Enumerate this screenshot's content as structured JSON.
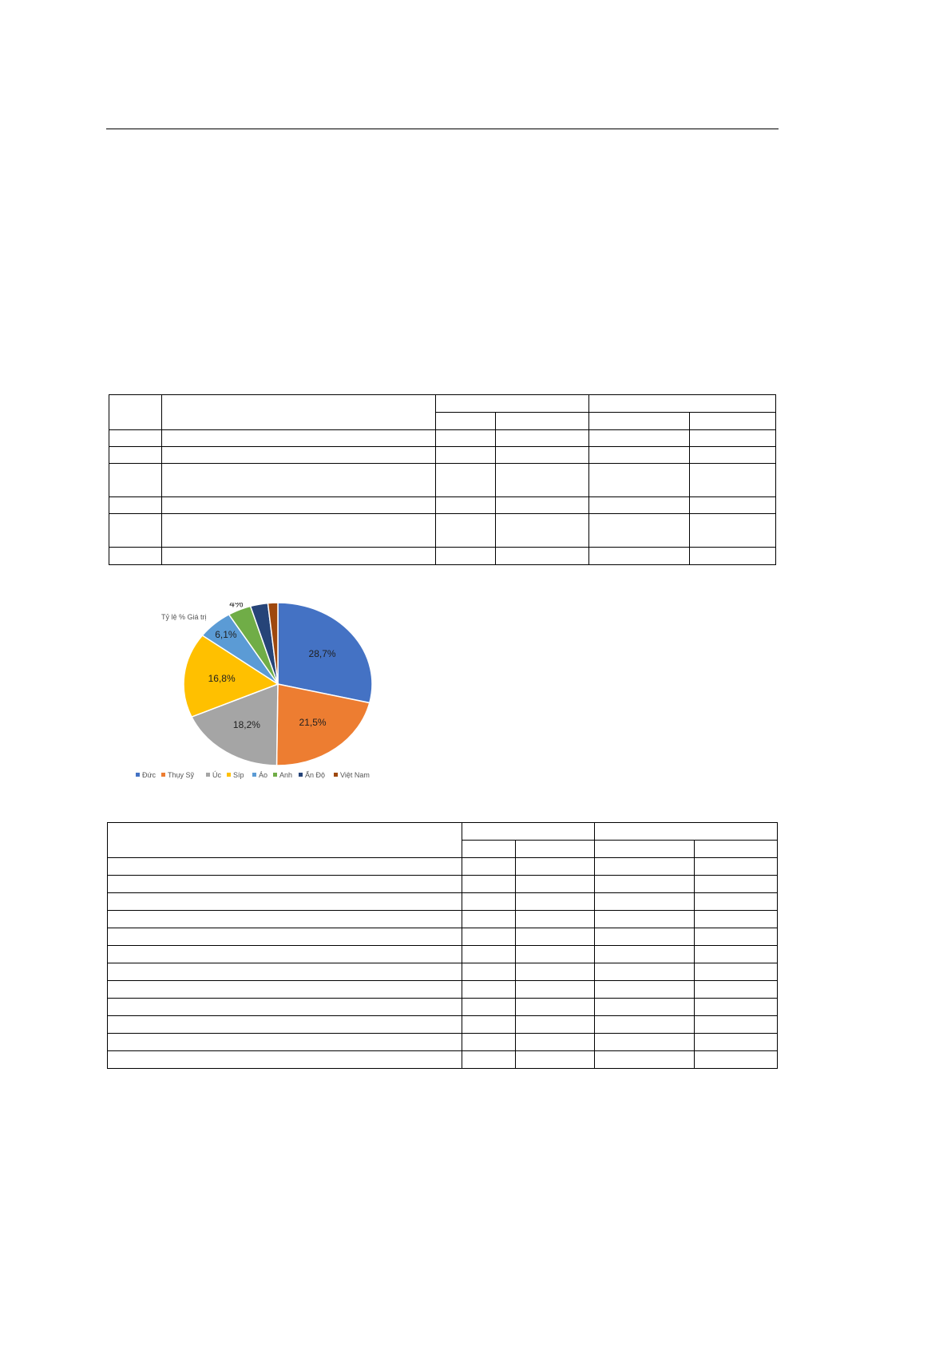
{
  "chart_data": {
    "type": "pie",
    "title": "Tỷ lệ % Giá trị",
    "categories": [
      "Đức",
      "Thụy Sỹ",
      "Úc",
      "Síp",
      "Áo",
      "Anh",
      "Ấn Độ",
      "Việt Nam"
    ],
    "values": [
      28.7,
      21.5,
      18.2,
      16.8,
      6.1,
      4,
      3,
      1.7
    ],
    "data_labels": [
      "28,7%",
      "21,5%",
      "18,2%",
      "16,8%",
      "6,1%",
      "4%",
      "3%",
      "1,7%"
    ],
    "colors": [
      "#4472c4",
      "#ed7d31",
      "#a5a5a5",
      "#ffc000",
      "#5b9bd5",
      "#70ad47",
      "#264478",
      "#9e480e"
    ],
    "legend_position": "bottom"
  }
}
